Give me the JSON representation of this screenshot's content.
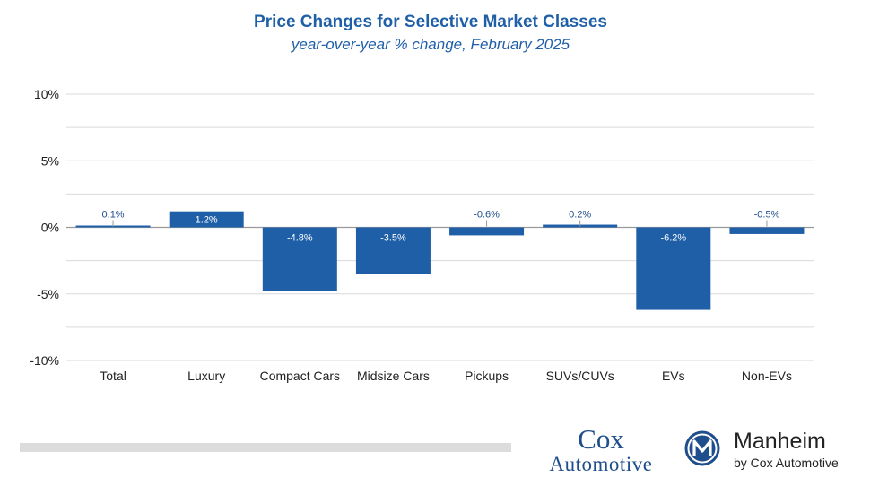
{
  "title": "Price Changes for Selective Market Classes",
  "subtitle": "year-over-year % change, February 2025",
  "chart_data": {
    "type": "bar",
    "title": "Price Changes for Selective Market Classes",
    "subtitle": "year-over-year % change, February 2025",
    "categories": [
      "Total",
      "Luxury",
      "Compact Cars",
      "Midsize Cars",
      "Pickups",
      "SUVs/CUVs",
      "EVs",
      "Non-EVs"
    ],
    "values": [
      0.1,
      1.2,
      -4.8,
      -3.5,
      -0.6,
      0.2,
      -6.2,
      -0.5
    ],
    "data_labels": [
      "0.1%",
      "1.2%",
      "-4.8%",
      "-3.5%",
      "-0.6%",
      "0.2%",
      "-6.2%",
      "-0.5%"
    ],
    "ylim": [
      -10,
      10
    ],
    "yticks": [
      10,
      5,
      0,
      -5,
      -10
    ],
    "ytick_labels": [
      "10%",
      "5%",
      "0%",
      "-5%",
      "-10%"
    ],
    "grid": true,
    "bar_color": "#1f5fa8",
    "label_color_outside": "#1f4e8c",
    "label_color_inside": "#ffffff"
  },
  "footer": {
    "cox_line1": "Cox",
    "cox_line2": "Automotive",
    "manheim_name": "Manheim",
    "manheim_sub": "by Cox Automotive"
  }
}
